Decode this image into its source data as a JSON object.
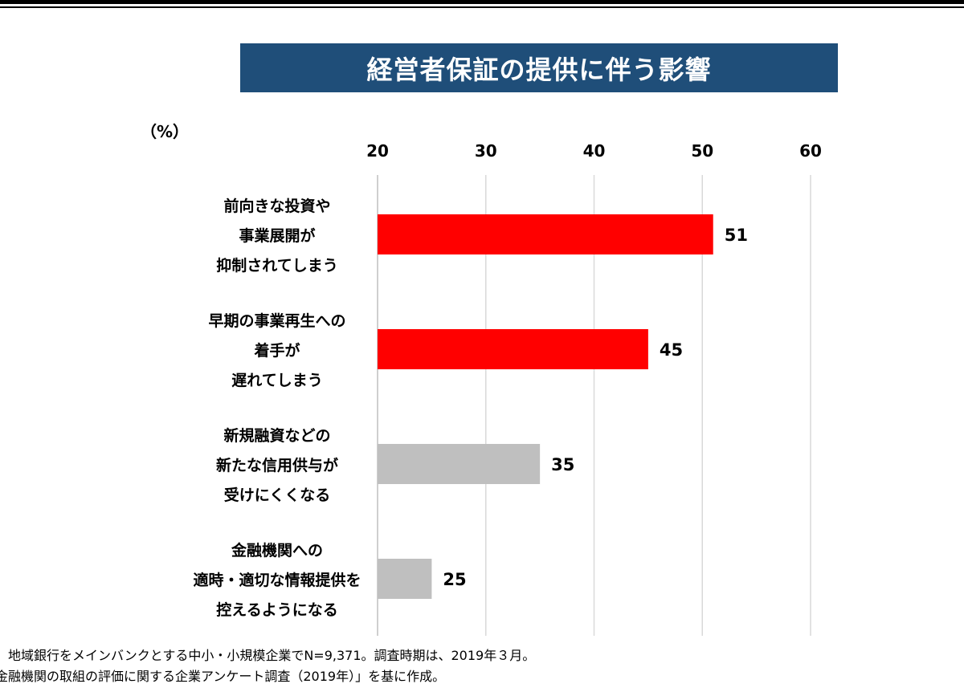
{
  "title": "経営者保証の提供に伴う影響",
  "unit_label": "（%）",
  "colors": {
    "title_bg": "#1f4e79",
    "highlight": "#ff0000",
    "muted": "#bfbfbf",
    "grid": "#d9d9d9"
  },
  "chart_data": {
    "type": "bar",
    "orientation": "horizontal",
    "categories": [
      [
        "前向きな投資や",
        "事業展開が",
        "抑制されてしまう"
      ],
      [
        "早期の事業再生への",
        "着手が",
        "遅れてしまう"
      ],
      [
        "新規融資などの",
        "新たな信用供与が",
        "受けにくくなる"
      ],
      [
        "金融機関への",
        "適時・適切な情報提供を",
        "控えるようになる"
      ]
    ],
    "values": [
      51,
      45,
      35,
      25
    ],
    "value_labels": [
      "51",
      "45",
      "35",
      "25"
    ],
    "bar_colors": [
      "#ff0000",
      "#ff0000",
      "#bfbfbf",
      "#bfbfbf"
    ],
    "xlim": [
      20,
      60
    ],
    "ticks": [
      20,
      30,
      40,
      50,
      60
    ],
    "axis_position": "top",
    "grid": true,
    "legend": "none"
  },
  "footnotes": [
    "、地域銀行をメインバンクとする中小・小規模企業でN=9,371。調査時期は、2019年３月。",
    "金融機関の取組の評価に関する企業アンケート調査（2019年）」を基に作成。"
  ]
}
